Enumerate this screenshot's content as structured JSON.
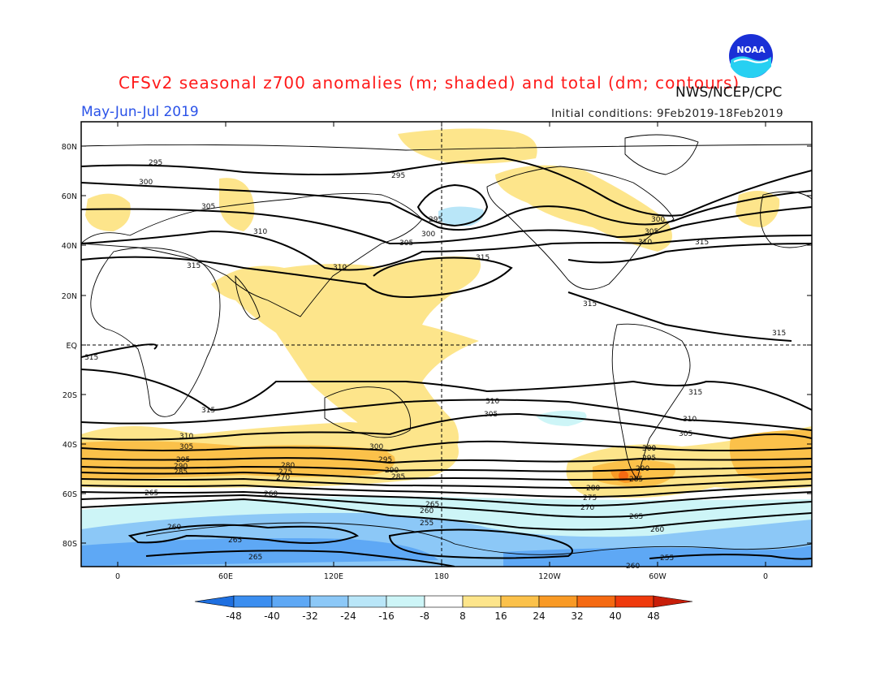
{
  "header": {
    "title": "CFSv2 seasonal z700 anomalies (m; shaded) and total (dm; contours)",
    "agency": "NWS/NCEP/CPC",
    "season": "May-Jun-Jul 2019",
    "initial_conditions": "Initial conditions: 9Feb2019-18Feb2019",
    "logo_text": "NOAA"
  },
  "axes": {
    "lat_labels": [
      "80N",
      "60N",
      "40N",
      "20N",
      "EQ",
      "20S",
      "40S",
      "60S",
      "80S"
    ],
    "lon_labels": [
      "0",
      "60E",
      "120E",
      "180",
      "120W",
      "60W",
      "0"
    ]
  },
  "colorbar": {
    "labels": [
      "-48",
      "-40",
      "-32",
      "-24",
      "-16",
      "-8",
      "8",
      "16",
      "24",
      "32",
      "40",
      "48"
    ],
    "colors": [
      "#1e6fe0",
      "#3b8ef0",
      "#5ea8f5",
      "#8cc8f7",
      "#b9e6f8",
      "#cdf5f7",
      "#ffffff",
      "#fde58b",
      "#fbc14a",
      "#f99a25",
      "#f56a12",
      "#ef3a0c",
      "#c81e0a"
    ]
  },
  "contour_labels": {
    "r1": "295",
    "r2": "300",
    "r3": "305",
    "r4": "310",
    "r5": "315",
    "r6": "295",
    "r7": "300",
    "r8": "295",
    "r9": "300",
    "r10": "305",
    "r11": "310",
    "r12": "315",
    "r13": "310",
    "r14": "305",
    "r15": "315",
    "r16": "315",
    "r17": "315",
    "r18": "315",
    "r19": "315",
    "r20": "315",
    "r21": "310",
    "r22": "305",
    "r23": "310",
    "r24": "305",
    "r25": "300",
    "r26": "310",
    "r27": "305",
    "r28": "295",
    "r29": "290",
    "r30": "285",
    "r31": "280",
    "r32": "275",
    "r33": "270",
    "r34": "300",
    "r35": "295",
    "r36": "290",
    "r37": "285",
    "r38": "300",
    "r39": "295",
    "r40": "290",
    "r41": "285",
    "r42": "280",
    "r43": "275",
    "r44": "270",
    "r45": "265",
    "r46": "260",
    "r47": "265",
    "r48": "260",
    "r49": "255",
    "r50": "265",
    "r51": "260",
    "r52": "260",
    "r53": "265",
    "r54": "265",
    "r55": "255",
    "r56": "260",
    "r57": "315"
  }
}
